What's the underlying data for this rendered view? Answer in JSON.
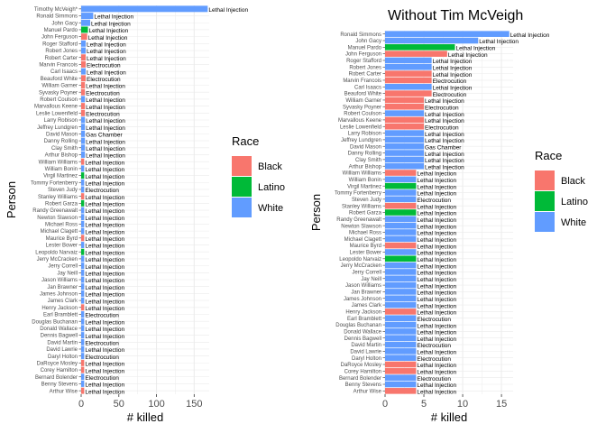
{
  "colors": {
    "Black": "#F8766D",
    "Latino": "#00BA38",
    "White": "#619CFF",
    "panel": "#ffffff",
    "grid": "#ebebeb"
  },
  "legend": {
    "title": "Race",
    "items": [
      "Black",
      "Latino",
      "White"
    ]
  },
  "chart_data": [
    {
      "type": "bar",
      "orientation": "horizontal",
      "title": "",
      "xlabel": "# killed",
      "ylabel": "Person",
      "xlim": [
        0,
        170
      ],
      "xticks": [
        0,
        50,
        100,
        150
      ],
      "grid": true,
      "legend_position": "right",
      "people": [
        {
          "name": "Timothy McVeigh*",
          "race": "White",
          "killed": 168,
          "method": "Lethal Injection"
        },
        {
          "name": "Ronald Simmons",
          "race": "White",
          "killed": 16,
          "method": "Lethal Injection"
        },
        {
          "name": "John Gacy",
          "race": "White",
          "killed": 12,
          "method": "Lethal Injection"
        },
        {
          "name": "Manuel Pardo",
          "race": "Latino",
          "killed": 9,
          "method": "Lethal Injection"
        },
        {
          "name": "John Ferguson",
          "race": "Black",
          "killed": 8,
          "method": "Lethal Injection"
        },
        {
          "name": "Roger Stafford",
          "race": "White",
          "killed": 6,
          "method": "Lethal Injection"
        },
        {
          "name": "Robert Jones",
          "race": "White",
          "killed": 6,
          "method": "Lethal Injection"
        },
        {
          "name": "Robert Carter",
          "race": "Black",
          "killed": 6,
          "method": "Lethal Injection"
        },
        {
          "name": "Marvin Francois",
          "race": "Black",
          "killed": 6,
          "method": "Electrocution"
        },
        {
          "name": "Carl Isaacs",
          "race": "White",
          "killed": 6,
          "method": "Lethal Injection"
        },
        {
          "name": "Beauford White",
          "race": "Black",
          "killed": 6,
          "method": "Electrocution"
        },
        {
          "name": "William Garner",
          "race": "Black",
          "killed": 5,
          "method": "Lethal Injection"
        },
        {
          "name": "Syvasky Poyner",
          "race": "Black",
          "killed": 5,
          "method": "Electrocution"
        },
        {
          "name": "Robert Coulson",
          "race": "White",
          "killed": 5,
          "method": "Lethal Injection"
        },
        {
          "name": "Marvallous Keene",
          "race": "Black",
          "killed": 5,
          "method": "Lethal Injection"
        },
        {
          "name": "Leslie Lowenfield",
          "race": "Black",
          "killed": 5,
          "method": "Electrocution"
        },
        {
          "name": "Larry Robison",
          "race": "White",
          "killed": 5,
          "method": "Lethal Injection"
        },
        {
          "name": "Jeffrey Lundgren",
          "race": "White",
          "killed": 5,
          "method": "Lethal Injection"
        },
        {
          "name": "David Mason",
          "race": "White",
          "killed": 5,
          "method": "Gas Chamber"
        },
        {
          "name": "Danny Rolling",
          "race": "White",
          "killed": 5,
          "method": "Lethal Injection"
        },
        {
          "name": "Clay Smith",
          "race": "White",
          "killed": 5,
          "method": "Lethal Injection"
        },
        {
          "name": "Arthur Bishop",
          "race": "White",
          "killed": 5,
          "method": "Lethal Injection"
        },
        {
          "name": "William Williams",
          "race": "Black",
          "killed": 4,
          "method": "Lethal Injection"
        },
        {
          "name": "William Bonin",
          "race": "White",
          "killed": 4,
          "method": "Lethal Injection"
        },
        {
          "name": "Virgil Martinez",
          "race": "Latino",
          "killed": 4,
          "method": "Lethal Injection"
        },
        {
          "name": "Tommy Fortenberry",
          "race": "White",
          "killed": 4,
          "method": "Lethal Injection"
        },
        {
          "name": "Steven Judy",
          "race": "White",
          "killed": 4,
          "method": "Electrocution"
        },
        {
          "name": "Stanley Williams",
          "race": "Black",
          "killed": 4,
          "method": "Lethal Injection"
        },
        {
          "name": "Robert Garza",
          "race": "Latino",
          "killed": 4,
          "method": "Lethal Injection"
        },
        {
          "name": "Randy Greenawalt",
          "race": "White",
          "killed": 4,
          "method": "Lethal Injection"
        },
        {
          "name": "Newton Slawson",
          "race": "White",
          "killed": 4,
          "method": "Lethal Injection"
        },
        {
          "name": "Michael Ross",
          "race": "White",
          "killed": 4,
          "method": "Lethal Injection"
        },
        {
          "name": "Michael Clagett",
          "race": "White",
          "killed": 4,
          "method": "Lethal Injection"
        },
        {
          "name": "Maurice Byrd",
          "race": "Black",
          "killed": 4,
          "method": "Lethal Injection"
        },
        {
          "name": "Lester Bower",
          "race": "White",
          "killed": 4,
          "method": "Lethal Injection"
        },
        {
          "name": "Leopoldo Narvaiz",
          "race": "Latino",
          "killed": 4,
          "method": "Lethal Injection"
        },
        {
          "name": "Jerry McCracken",
          "race": "White",
          "killed": 4,
          "method": "Lethal Injection"
        },
        {
          "name": "Jerry Correll",
          "race": "White",
          "killed": 4,
          "method": "Lethal Injection"
        },
        {
          "name": "Jay Neill",
          "race": "White",
          "killed": 4,
          "method": "Lethal Injection"
        },
        {
          "name": "Jason Williams",
          "race": "White",
          "killed": 4,
          "method": "Lethal Injection"
        },
        {
          "name": "Jan Brawner",
          "race": "White",
          "killed": 4,
          "method": "Lethal Injection"
        },
        {
          "name": "James Johnson",
          "race": "White",
          "killed": 4,
          "method": "Lethal Injection"
        },
        {
          "name": "James Clark",
          "race": "White",
          "killed": 4,
          "method": "Lethal Injection"
        },
        {
          "name": "Henry Jackson",
          "race": "Black",
          "killed": 4,
          "method": "Lethal Injection"
        },
        {
          "name": "Earl Bramblett",
          "race": "White",
          "killed": 4,
          "method": "Electrocution"
        },
        {
          "name": "Douglas Buchanan",
          "race": "White",
          "killed": 4,
          "method": "Lethal Injection"
        },
        {
          "name": "Donald Wallace",
          "race": "White",
          "killed": 4,
          "method": "Lethal Injection"
        },
        {
          "name": "Dennis Bagwell",
          "race": "White",
          "killed": 4,
          "method": "Lethal Injection"
        },
        {
          "name": "David Martin",
          "race": "White",
          "killed": 4,
          "method": "Electrocution"
        },
        {
          "name": "David Lawrie",
          "race": "White",
          "killed": 4,
          "method": "Lethal Injection"
        },
        {
          "name": "Daryl Holton",
          "race": "White",
          "killed": 4,
          "method": "Electrocution"
        },
        {
          "name": "DaRoyce Mosley",
          "race": "Black",
          "killed": 4,
          "method": "Lethal Injection"
        },
        {
          "name": "Corey Hamilton",
          "race": "Black",
          "killed": 4,
          "method": "Lethal Injection"
        },
        {
          "name": "Bernard Bolender",
          "race": "White",
          "killed": 4,
          "method": "Electrocution"
        },
        {
          "name": "Benny Stevens",
          "race": "White",
          "killed": 4,
          "method": "Lethal Injection"
        },
        {
          "name": "Arthur Wise",
          "race": "Black",
          "killed": 4,
          "method": "Lethal Injection"
        }
      ]
    },
    {
      "type": "bar",
      "orientation": "horizontal",
      "title": "Without Tim McVeigh",
      "xlabel": "# killed",
      "ylabel": "Person",
      "xlim": [
        0,
        16.5
      ],
      "xticks": [
        0,
        5,
        10,
        15
      ],
      "grid": true,
      "legend_position": "right",
      "people": [
        {
          "name": "Ronald Simmons",
          "race": "White",
          "killed": 16,
          "method": "Lethal Injection"
        },
        {
          "name": "John Gacy",
          "race": "White",
          "killed": 12,
          "method": "Lethal Injection"
        },
        {
          "name": "Manuel Pardo",
          "race": "Latino",
          "killed": 9,
          "method": "Lethal Injection"
        },
        {
          "name": "John Ferguson",
          "race": "Black",
          "killed": 8,
          "method": "Lethal Injection"
        },
        {
          "name": "Roger Stafford",
          "race": "White",
          "killed": 6,
          "method": "Lethal Injection"
        },
        {
          "name": "Robert Jones",
          "race": "White",
          "killed": 6,
          "method": "Lethal Injection"
        },
        {
          "name": "Robert Carter",
          "race": "Black",
          "killed": 6,
          "method": "Lethal Injection"
        },
        {
          "name": "Marvin Francois",
          "race": "Black",
          "killed": 6,
          "method": "Electrocution"
        },
        {
          "name": "Carl Isaacs",
          "race": "White",
          "killed": 6,
          "method": "Lethal Injection"
        },
        {
          "name": "Beauford White",
          "race": "Black",
          "killed": 6,
          "method": "Electrocution"
        },
        {
          "name": "William Garner",
          "race": "Black",
          "killed": 5,
          "method": "Lethal Injection"
        },
        {
          "name": "Syvasky Poyner",
          "race": "Black",
          "killed": 5,
          "method": "Electrocution"
        },
        {
          "name": "Robert Coulson",
          "race": "White",
          "killed": 5,
          "method": "Lethal Injection"
        },
        {
          "name": "Marvallous Keene",
          "race": "Black",
          "killed": 5,
          "method": "Lethal Injection"
        },
        {
          "name": "Leslie Lowenfield",
          "race": "Black",
          "killed": 5,
          "method": "Electrocution"
        },
        {
          "name": "Larry Robison",
          "race": "White",
          "killed": 5,
          "method": "Lethal Injection"
        },
        {
          "name": "Jeffrey Lundgren",
          "race": "White",
          "killed": 5,
          "method": "Lethal Injection"
        },
        {
          "name": "David Mason",
          "race": "White",
          "killed": 5,
          "method": "Gas Chamber"
        },
        {
          "name": "Danny Rolling",
          "race": "White",
          "killed": 5,
          "method": "Lethal Injection"
        },
        {
          "name": "Clay Smith",
          "race": "White",
          "killed": 5,
          "method": "Lethal Injection"
        },
        {
          "name": "Arthur Bishop",
          "race": "White",
          "killed": 5,
          "method": "Lethal Injection"
        },
        {
          "name": "William Williams",
          "race": "Black",
          "killed": 4,
          "method": "Lethal Injection"
        },
        {
          "name": "William Bonin",
          "race": "White",
          "killed": 4,
          "method": "Lethal Injection"
        },
        {
          "name": "Virgil Martinez",
          "race": "Latino",
          "killed": 4,
          "method": "Lethal Injection"
        },
        {
          "name": "Tommy Fortenberry",
          "race": "White",
          "killed": 4,
          "method": "Lethal Injection"
        },
        {
          "name": "Steven Judy",
          "race": "White",
          "killed": 4,
          "method": "Electrocution"
        },
        {
          "name": "Stanley Williams",
          "race": "Black",
          "killed": 4,
          "method": "Lethal Injection"
        },
        {
          "name": "Robert Garza",
          "race": "Latino",
          "killed": 4,
          "method": "Lethal Injection"
        },
        {
          "name": "Randy Greenawalt",
          "race": "White",
          "killed": 4,
          "method": "Lethal Injection"
        },
        {
          "name": "Newton Slawson",
          "race": "White",
          "killed": 4,
          "method": "Lethal Injection"
        },
        {
          "name": "Michael Ross",
          "race": "White",
          "killed": 4,
          "method": "Lethal Injection"
        },
        {
          "name": "Michael Clagett",
          "race": "White",
          "killed": 4,
          "method": "Lethal Injection"
        },
        {
          "name": "Maurice Byrd",
          "race": "Black",
          "killed": 4,
          "method": "Lethal Injection"
        },
        {
          "name": "Lester Bower",
          "race": "White",
          "killed": 4,
          "method": "Lethal Injection"
        },
        {
          "name": "Leopoldo Narvaiz",
          "race": "Latino",
          "killed": 4,
          "method": "Lethal Injection"
        },
        {
          "name": "Jerry McCracken",
          "race": "White",
          "killed": 4,
          "method": "Lethal Injection"
        },
        {
          "name": "Jerry Correll",
          "race": "White",
          "killed": 4,
          "method": "Lethal Injection"
        },
        {
          "name": "Jay Neill",
          "race": "White",
          "killed": 4,
          "method": "Lethal Injection"
        },
        {
          "name": "Jason Williams",
          "race": "White",
          "killed": 4,
          "method": "Lethal Injection"
        },
        {
          "name": "Jan Brawner",
          "race": "White",
          "killed": 4,
          "method": "Lethal Injection"
        },
        {
          "name": "James Johnson",
          "race": "White",
          "killed": 4,
          "method": "Lethal Injection"
        },
        {
          "name": "James Clark",
          "race": "White",
          "killed": 4,
          "method": "Lethal Injection"
        },
        {
          "name": "Henry Jackson",
          "race": "Black",
          "killed": 4,
          "method": "Lethal Injection"
        },
        {
          "name": "Earl Bramblett",
          "race": "White",
          "killed": 4,
          "method": "Electrocution"
        },
        {
          "name": "Douglas Buchanan",
          "race": "White",
          "killed": 4,
          "method": "Lethal Injection"
        },
        {
          "name": "Donald Wallace",
          "race": "White",
          "killed": 4,
          "method": "Lethal Injection"
        },
        {
          "name": "Dennis Bagwell",
          "race": "White",
          "killed": 4,
          "method": "Lethal Injection"
        },
        {
          "name": "David Martin",
          "race": "White",
          "killed": 4,
          "method": "Electrocution"
        },
        {
          "name": "David Lawrie",
          "race": "White",
          "killed": 4,
          "method": "Lethal Injection"
        },
        {
          "name": "Daryl Holton",
          "race": "White",
          "killed": 4,
          "method": "Electrocution"
        },
        {
          "name": "DaRoyce Mosley",
          "race": "Black",
          "killed": 4,
          "method": "Lethal Injection"
        },
        {
          "name": "Corey Hamilton",
          "race": "Black",
          "killed": 4,
          "method": "Lethal Injection"
        },
        {
          "name": "Bernard Bolender",
          "race": "White",
          "killed": 4,
          "method": "Electrocution"
        },
        {
          "name": "Benny Stevens",
          "race": "White",
          "killed": 4,
          "method": "Lethal Injection"
        },
        {
          "name": "Arthur Wise",
          "race": "Black",
          "killed": 4,
          "method": "Lethal Injection"
        }
      ]
    }
  ]
}
